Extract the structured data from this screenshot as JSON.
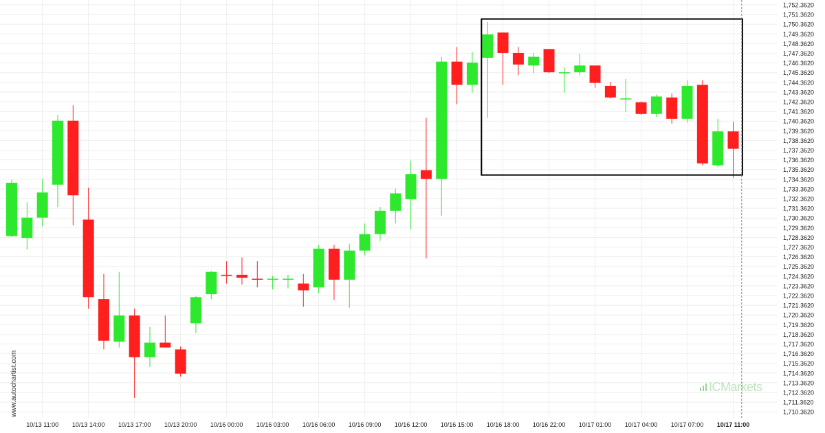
{
  "watermark": {
    "site": "www.autochartist.com",
    "brand": "ICMarkets",
    "brand_color": "#4caf50"
  },
  "colors": {
    "bull": "#2ee82e",
    "bear": "#ff1f1f",
    "grid": "#eeeeee",
    "box": "#000000",
    "axis_text": "#222222"
  },
  "chart_data": {
    "type": "candlestick",
    "title": "",
    "xlabel": "",
    "ylabel": "",
    "grid": true,
    "ylim": [
      1709.8,
      1752.6
    ],
    "y_ticks": [
      "1,710.3620",
      "1,711.3620",
      "1,712.3620",
      "1,713.3620",
      "1,714.3620",
      "1,715.3620",
      "1,716.3620",
      "1,717.3620",
      "1,718.3620",
      "1,719.3620",
      "1,720.3620",
      "1,721.3620",
      "1,722.3620",
      "1,723.3620",
      "1,724.3620",
      "1,725.3620",
      "1,726.3620",
      "1,727.3620",
      "1,728.3620",
      "1,729.3620",
      "1,730.3620",
      "1,731.3620",
      "1,732.3620",
      "1,733.3620",
      "1,734.3620",
      "1,735.3620",
      "1,736.3620",
      "1,737.3620",
      "1,738.3620",
      "1,739.3620",
      "1,740.3620",
      "1,741.3620",
      "1,742.3620",
      "1,743.3620",
      "1,744.3620",
      "1,745.3620",
      "1,746.3620",
      "1,747.3620",
      "1,748.3620",
      "1,749.3620",
      "1,750.3620",
      "1,751.3620",
      "1,752.3620"
    ],
    "x_ticks": [
      {
        "label": "10/13 11:00",
        "index": 2
      },
      {
        "label": "10/13 14:00",
        "index": 5
      },
      {
        "label": "10/13 17:00",
        "index": 8
      },
      {
        "label": "10/13 20:00",
        "index": 11
      },
      {
        "label": "10/16 00:00",
        "index": 14
      },
      {
        "label": "10/16 03:00",
        "index": 17
      },
      {
        "label": "10/16 06:00",
        "index": 20
      },
      {
        "label": "10/16 09:00",
        "index": 23
      },
      {
        "label": "10/16 12:00",
        "index": 26
      },
      {
        "label": "10/16 15:00",
        "index": 29
      },
      {
        "label": "10/16 18:00",
        "index": 32
      },
      {
        "label": "10/16 22:00",
        "index": 35
      },
      {
        "label": "10/17 01:00",
        "index": 38
      },
      {
        "label": "10/17 04:00",
        "index": 41
      },
      {
        "label": "10/17 07:00",
        "index": 44
      },
      {
        "label": "10/17 11:00",
        "index": 47,
        "bold": true
      }
    ],
    "candles": [
      {
        "o": 1728.5,
        "h": 1734.3,
        "l": 1728.4,
        "c": 1734.0
      },
      {
        "o": 1728.3,
        "h": 1732.0,
        "l": 1727.1,
        "c": 1730.4
      },
      {
        "o": 1730.4,
        "h": 1734.4,
        "l": 1729.5,
        "c": 1733.0
      },
      {
        "o": 1733.8,
        "h": 1741.0,
        "l": 1731.5,
        "c": 1740.4
      },
      {
        "o": 1740.4,
        "h": 1742.0,
        "l": 1729.6,
        "c": 1732.7
      },
      {
        "o": 1730.2,
        "h": 1733.5,
        "l": 1721.0,
        "c": 1722.2
      },
      {
        "o": 1722.0,
        "h": 1724.6,
        "l": 1716.8,
        "c": 1717.7
      },
      {
        "o": 1717.6,
        "h": 1724.8,
        "l": 1717.0,
        "c": 1720.3
      },
      {
        "o": 1720.3,
        "h": 1721.0,
        "l": 1711.8,
        "c": 1716.0
      },
      {
        "o": 1716.0,
        "h": 1719.1,
        "l": 1715.0,
        "c": 1717.5
      },
      {
        "o": 1717.5,
        "h": 1720.3,
        "l": 1717.0,
        "c": 1717.0
      },
      {
        "o": 1716.8,
        "h": 1717.1,
        "l": 1714.0,
        "c": 1714.3
      },
      {
        "o": 1719.5,
        "h": 1722.3,
        "l": 1718.5,
        "c": 1722.2
      },
      {
        "o": 1722.5,
        "h": 1724.9,
        "l": 1722.0,
        "c": 1724.8
      },
      {
        "o": 1724.5,
        "h": 1725.9,
        "l": 1723.6,
        "c": 1724.4
      },
      {
        "o": 1724.5,
        "h": 1726.3,
        "l": 1723.5,
        "c": 1724.2
      },
      {
        "o": 1724.1,
        "h": 1725.9,
        "l": 1723.2,
        "c": 1724.0
      },
      {
        "o": 1724.0,
        "h": 1724.4,
        "l": 1723.0,
        "c": 1724.1
      },
      {
        "o": 1724.0,
        "h": 1724.5,
        "l": 1723.1,
        "c": 1724.1
      },
      {
        "o": 1723.6,
        "h": 1724.6,
        "l": 1721.2,
        "c": 1722.9
      },
      {
        "o": 1723.2,
        "h": 1727.6,
        "l": 1722.6,
        "c": 1727.2
      },
      {
        "o": 1727.2,
        "h": 1727.6,
        "l": 1721.9,
        "c": 1724.0
      },
      {
        "o": 1724.0,
        "h": 1727.7,
        "l": 1721.1,
        "c": 1727.0
      },
      {
        "o": 1727.0,
        "h": 1729.8,
        "l": 1726.5,
        "c": 1728.7
      },
      {
        "o": 1728.7,
        "h": 1731.5,
        "l": 1728.0,
        "c": 1731.1
      },
      {
        "o": 1731.1,
        "h": 1733.4,
        "l": 1729.8,
        "c": 1732.9
      },
      {
        "o": 1732.3,
        "h": 1736.3,
        "l": 1729.2,
        "c": 1734.9
      },
      {
        "o": 1735.3,
        "h": 1740.7,
        "l": 1726.2,
        "c": 1734.4
      },
      {
        "o": 1734.4,
        "h": 1747.0,
        "l": 1730.6,
        "c": 1746.5
      },
      {
        "o": 1746.5,
        "h": 1748.0,
        "l": 1742.1,
        "c": 1744.1
      },
      {
        "o": 1744.1,
        "h": 1747.5,
        "l": 1743.3,
        "c": 1746.4
      },
      {
        "o": 1746.9,
        "h": 1750.6,
        "l": 1740.7,
        "c": 1749.3
      },
      {
        "o": 1749.5,
        "h": 1749.5,
        "l": 1744.1,
        "c": 1747.4
      },
      {
        "o": 1747.4,
        "h": 1748.0,
        "l": 1745.1,
        "c": 1746.2
      },
      {
        "o": 1746.1,
        "h": 1747.4,
        "l": 1745.3,
        "c": 1747.0
      },
      {
        "o": 1747.8,
        "h": 1747.8,
        "l": 1745.3,
        "c": 1745.4
      },
      {
        "o": 1745.4,
        "h": 1745.9,
        "l": 1743.3,
        "c": 1745.4
      },
      {
        "o": 1745.4,
        "h": 1747.3,
        "l": 1745.1,
        "c": 1746.1
      },
      {
        "o": 1746.1,
        "h": 1746.1,
        "l": 1743.8,
        "c": 1744.3
      },
      {
        "o": 1744.0,
        "h": 1744.4,
        "l": 1742.7,
        "c": 1742.8
      },
      {
        "o": 1742.7,
        "h": 1744.7,
        "l": 1741.3,
        "c": 1742.7
      },
      {
        "o": 1742.3,
        "h": 1742.4,
        "l": 1741.0,
        "c": 1741.1
      },
      {
        "o": 1741.1,
        "h": 1743.1,
        "l": 1740.8,
        "c": 1742.9
      },
      {
        "o": 1742.8,
        "h": 1743.2,
        "l": 1740.1,
        "c": 1740.6
      },
      {
        "o": 1740.6,
        "h": 1744.6,
        "l": 1740.2,
        "c": 1744.0
      },
      {
        "o": 1744.1,
        "h": 1744.6,
        "l": 1735.8,
        "c": 1736.0
      },
      {
        "o": 1735.8,
        "h": 1740.6,
        "l": 1735.6,
        "c": 1739.3
      },
      {
        "o": 1739.3,
        "h": 1740.3,
        "l": 1734.5,
        "c": 1737.5
      }
    ],
    "pattern_box": {
      "start_index": 30.6,
      "end_index": 47.6,
      "top": 1750.9,
      "bottom": 1734.8
    },
    "current_time_index": 47.55
  }
}
